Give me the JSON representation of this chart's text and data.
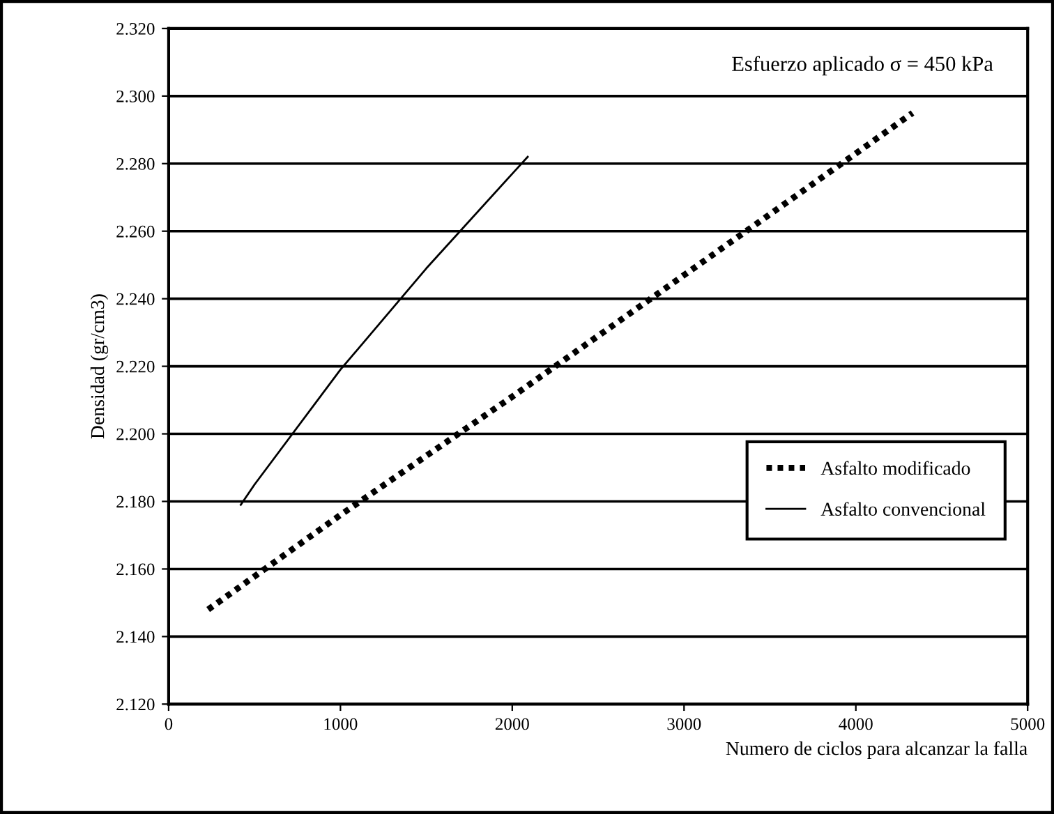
{
  "chart_data": {
    "type": "line",
    "xlabel": "Numero de ciclos para alcanzar la falla",
    "ylabel": "Densidad (gr/cm3)",
    "annotations": [
      "Esfuerzo aplicado σ = 450 kPa"
    ],
    "series": [
      {
        "name": "Asfalto modificado",
        "color": "#000000",
        "line_style": "dotted",
        "x": [
          230,
          1000,
          2000,
          3000,
          4000,
          4330
        ],
        "values": [
          2.148,
          2.176,
          2.211,
          2.247,
          2.283,
          2.295
        ]
      },
      {
        "name": "Asfalto convencional",
        "color": "#000000",
        "line_style": "solid",
        "x": [
          420,
          500,
          1000,
          1500,
          2000,
          2090
        ],
        "values": [
          2.179,
          2.185,
          2.219,
          2.249,
          2.277,
          2.282
        ]
      }
    ],
    "xlim": [
      0,
      5000
    ],
    "xticks": [
      0,
      1000,
      2000,
      3000,
      4000,
      5000
    ],
    "ylim": [
      2.12,
      2.32
    ],
    "yticks": [
      {
        "value": 2.12,
        "label": "2.120"
      },
      {
        "value": 2.14,
        "label": "2.140"
      },
      {
        "value": 2.16,
        "label": "2.160"
      },
      {
        "value": 2.18,
        "label": "2.180"
      },
      {
        "value": 2.2,
        "label": "2.200"
      },
      {
        "value": 2.22,
        "label": "2.220"
      },
      {
        "value": 2.24,
        "label": "2.240"
      },
      {
        "value": 2.26,
        "label": "2.260"
      },
      {
        "value": 2.28,
        "label": "2.280"
      },
      {
        "value": 2.3,
        "label": "2.300"
      },
      {
        "value": 2.32,
        "label": "2.320"
      }
    ],
    "grid": "y",
    "legend": "bottom right",
    "marker": "none"
  }
}
